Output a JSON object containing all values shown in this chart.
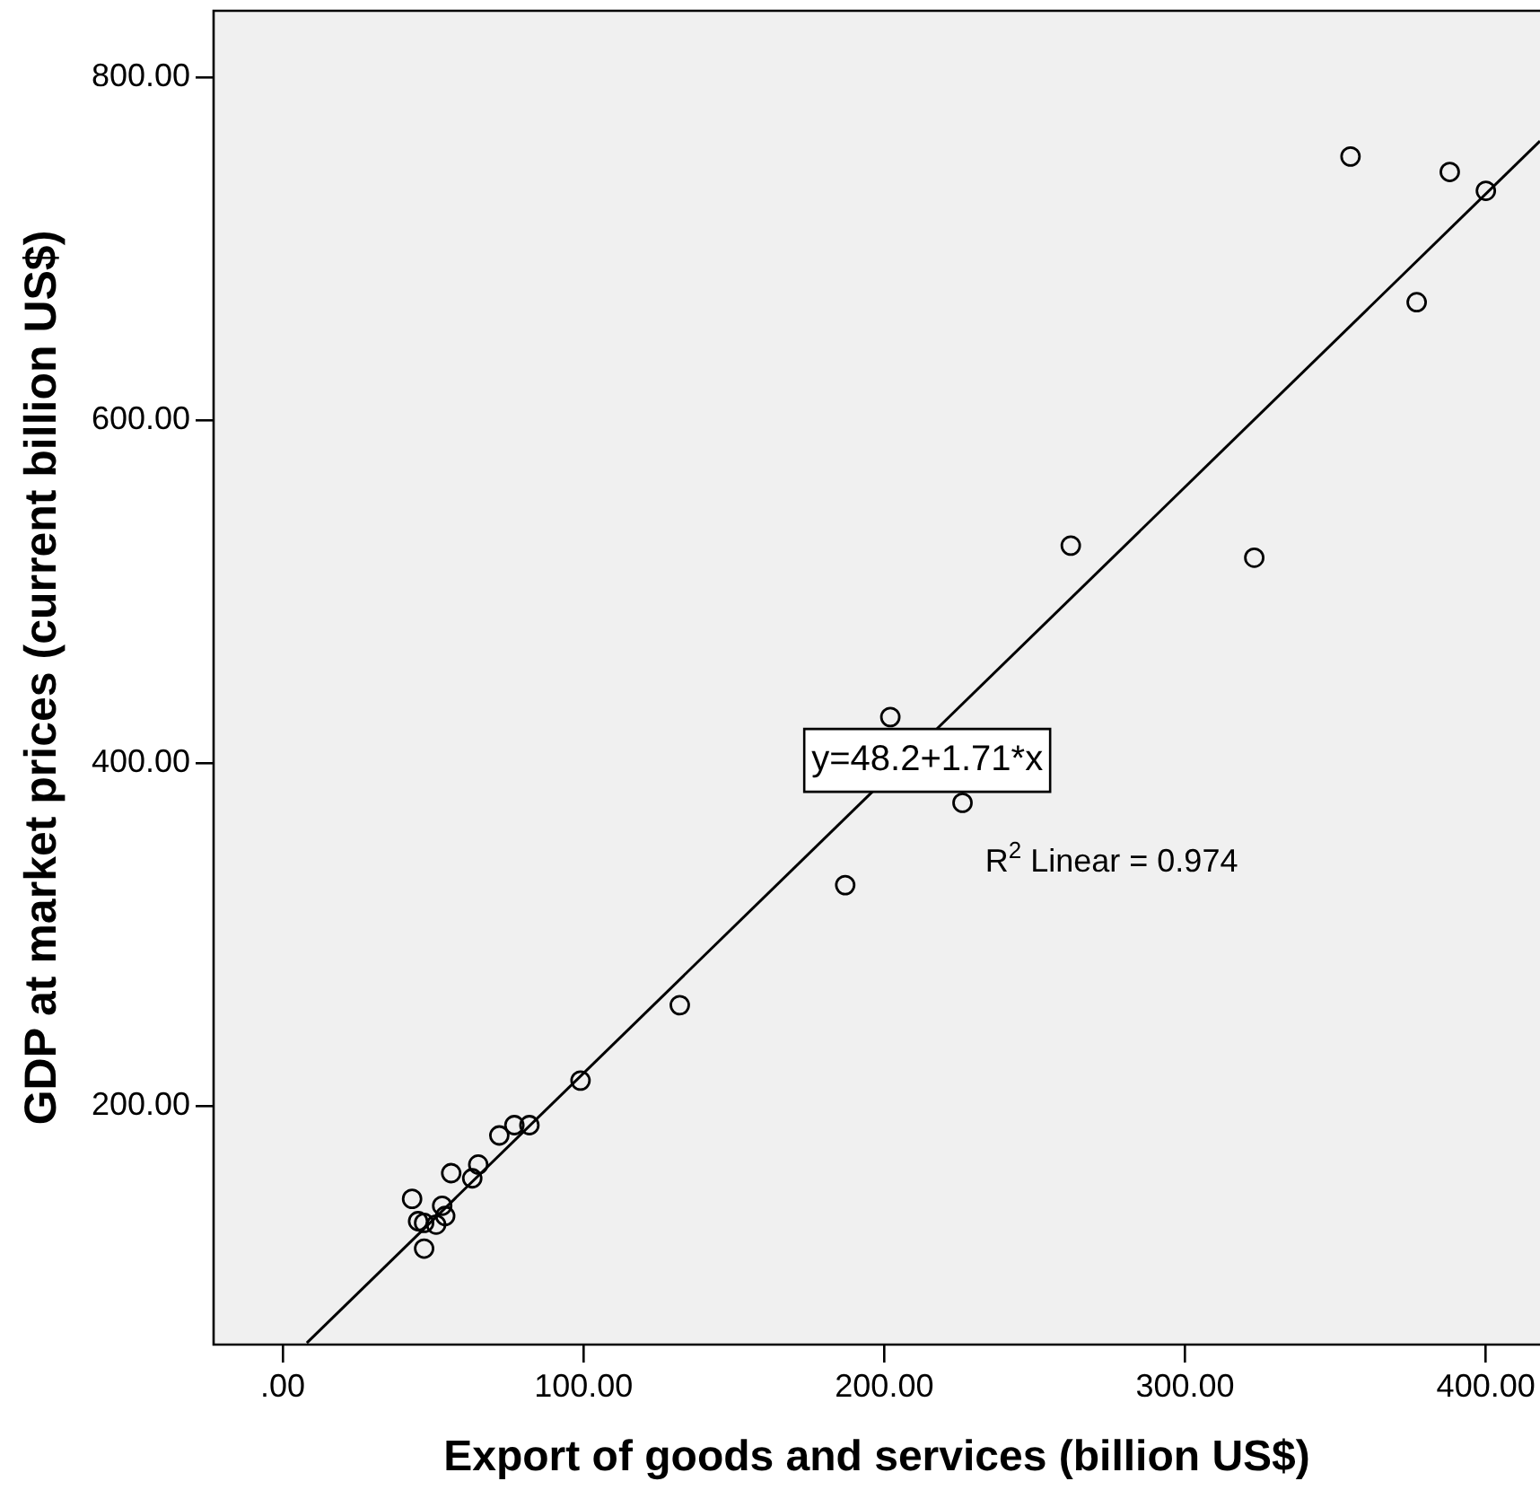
{
  "chart_data": {
    "type": "scatter",
    "xlabel": "Export of goods and services (billion US$)",
    "ylabel": "GDP at market prices (current billion US$)",
    "xlim": [
      -23,
      418
    ],
    "ylim": [
      61,
      839
    ],
    "xticks": [
      {
        "value": 0,
        "label": ".00"
      },
      {
        "value": 100,
        "label": "100.00"
      },
      {
        "value": 200,
        "label": "200.00"
      },
      {
        "value": 300,
        "label": "300.00"
      },
      {
        "value": 400,
        "label": "400.00"
      }
    ],
    "yticks": [
      {
        "value": 200,
        "label": "200.00"
      },
      {
        "value": 400,
        "label": "400.00"
      },
      {
        "value": 600,
        "label": "600.00"
      },
      {
        "value": 800,
        "label": "800.00"
      }
    ],
    "marker": "circle",
    "series": [
      {
        "color": "#000000",
        "x": [
          43,
          45,
          47,
          47,
          51,
          54,
          53,
          56,
          63,
          65,
          72,
          77,
          82,
          99,
          132,
          187,
          202,
          226,
          262,
          323,
          355,
          377,
          388,
          400
        ],
        "values": [
          146,
          133,
          132,
          117,
          131,
          136,
          142,
          161,
          158,
          166,
          183,
          189,
          189,
          215,
          259,
          329,
          427,
          377,
          527,
          520,
          754,
          669,
          745,
          734
        ]
      },
      {
        "type": "line",
        "marker": "none",
        "color": "#000000",
        "x": [
          8,
          418
        ],
        "values": [
          62,
          763
        ]
      }
    ],
    "annotations": [
      "y=48.2+1.71*x",
      "R$^{2}$ Linear = 0.974"
    ]
  }
}
